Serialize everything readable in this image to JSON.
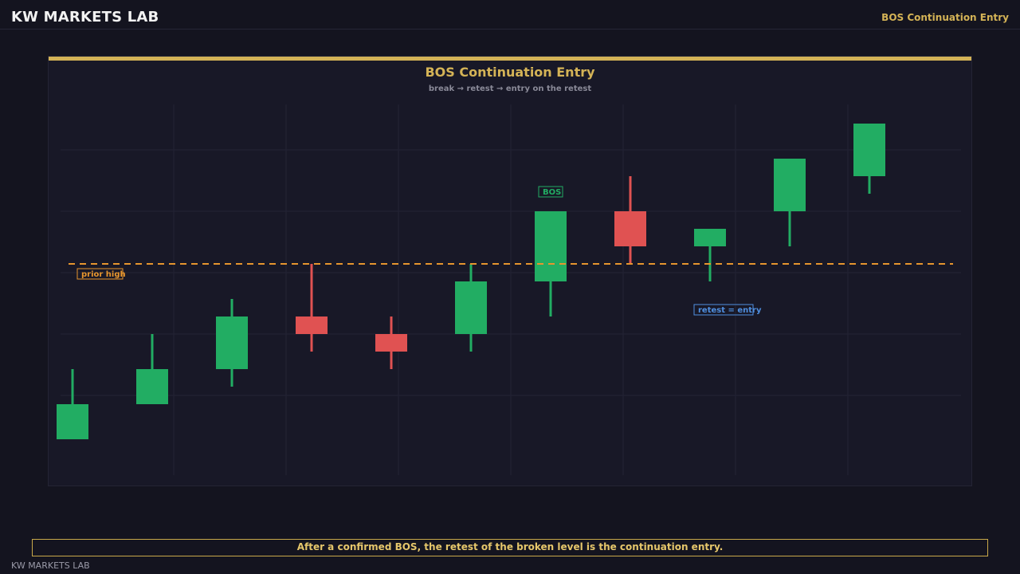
{
  "header": {
    "brand": "KW MARKETS LAB",
    "title": "BOS Continuation Entry"
  },
  "chart_data": {
    "type": "candlestick",
    "title": "BOS Continuation Entry",
    "subtitle": "break → retest → entry on the retest",
    "xlabel": "",
    "ylabel": "",
    "ylim": [
      0,
      21
    ],
    "grid": true,
    "colors": {
      "bull": "#22ad63",
      "bear": "#e05252",
      "level": "#e6952e",
      "entry_label": "#4f8fe0",
      "bos_label": "#22ad63"
    },
    "candles": [
      {
        "open": 3,
        "high": 5,
        "low": 1,
        "close": 1
      },
      {
        "open": 5,
        "high": 7,
        "low": 3,
        "close": 5
      },
      {
        "open": 8,
        "high": 9,
        "low": 4,
        "close": 8
      },
      {
        "open": 8,
        "high": 11,
        "low": 6,
        "close": 9
      },
      {
        "open": 7,
        "high": 8,
        "low": 5,
        "close": 7
      },
      {
        "open": 10,
        "high": 11,
        "low": 6,
        "close": 10
      },
      {
        "open": 13,
        "high": 14,
        "low": 8,
        "close": 13
      },
      {
        "open": 13,
        "high": 16,
        "low": 11,
        "close": 13
      },
      {
        "open": 12,
        "high": 13,
        "low": 10,
        "close": 12
      },
      {
        "open": 15,
        "high": 16,
        "low": 12,
        "close": 15
      },
      {
        "open": 18,
        "high": 19,
        "low": 15,
        "close": 18
      }
    ],
    "level": {
      "value": 11,
      "label": "prior high"
    },
    "annotations": [
      {
        "text": "BOS",
        "candle": 6
      },
      {
        "text": "retest = entry",
        "candle": 8
      }
    ]
  },
  "caption": "After a confirmed BOS, the retest of the broken level is the continuation entry.",
  "footer": {
    "brand": "KW MARKETS LAB"
  }
}
